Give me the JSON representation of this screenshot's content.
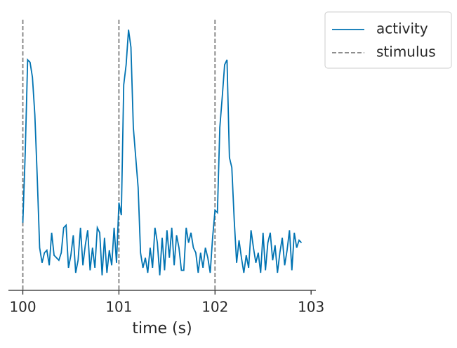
{
  "chart_data": {
    "type": "line",
    "xlabel": "time (s)",
    "x": [
      100.0,
      100.025,
      100.05,
      100.075,
      100.1,
      100.125,
      100.15,
      100.175,
      100.2,
      100.225,
      100.25,
      100.275,
      100.3,
      100.325,
      100.35,
      100.375,
      100.4,
      100.425,
      100.45,
      100.475,
      100.5,
      100.525,
      100.55,
      100.575,
      100.6,
      100.625,
      100.65,
      100.675,
      100.7,
      100.725,
      100.75,
      100.775,
      100.8,
      100.825,
      100.85,
      100.875,
      100.9,
      100.925,
      100.95,
      100.975,
      101.0,
      101.025,
      101.05,
      101.075,
      101.1,
      101.125,
      101.15,
      101.175,
      101.2,
      101.225,
      101.25,
      101.275,
      101.3,
      101.325,
      101.35,
      101.375,
      101.4,
      101.425,
      101.45,
      101.475,
      101.5,
      101.525,
      101.55,
      101.575,
      101.6,
      101.625,
      101.65,
      101.675,
      101.7,
      101.725,
      101.75,
      101.775,
      101.8,
      101.825,
      101.85,
      101.875,
      101.9,
      101.925,
      101.95,
      101.975,
      102.0,
      102.025,
      102.05,
      102.075,
      102.1,
      102.125,
      102.15,
      102.175,
      102.2,
      102.225,
      102.25,
      102.275,
      102.3,
      102.325,
      102.35,
      102.375,
      102.4,
      102.425,
      102.45,
      102.475,
      102.5,
      102.525,
      102.55,
      102.575,
      102.6,
      102.625,
      102.65,
      102.675,
      102.7,
      102.725,
      102.75,
      102.775,
      102.8,
      102.825,
      102.85,
      102.875,
      102.9
    ],
    "series": [
      {
        "name": "activity",
        "color": "#0173b2",
        "values": [
          0.22,
          0.5,
          0.87,
          0.86,
          0.8,
          0.65,
          0.4,
          0.12,
          0.06,
          0.1,
          0.11,
          0.05,
          0.18,
          0.09,
          0.08,
          0.07,
          0.1,
          0.2,
          0.21,
          0.04,
          0.09,
          0.17,
          0.02,
          0.07,
          0.2,
          0.05,
          0.13,
          0.19,
          0.03,
          0.12,
          0.04,
          0.2,
          0.18,
          0.01,
          0.16,
          0.02,
          0.11,
          0.05,
          0.2,
          0.06,
          0.3,
          0.25,
          0.77,
          0.85,
          0.99,
          0.92,
          0.6,
          0.48,
          0.36,
          0.1,
          0.04,
          0.08,
          0.02,
          0.12,
          0.04,
          0.2,
          0.14,
          0.01,
          0.16,
          0.03,
          0.19,
          0.08,
          0.2,
          0.05,
          0.17,
          0.12,
          0.03,
          0.03,
          0.2,
          0.14,
          0.18,
          0.12,
          0.1,
          0.02,
          0.1,
          0.04,
          0.12,
          0.08,
          0.02,
          0.16,
          0.27,
          0.26,
          0.6,
          0.72,
          0.85,
          0.87,
          0.48,
          0.44,
          0.23,
          0.06,
          0.15,
          0.08,
          0.02,
          0.09,
          0.04,
          0.19,
          0.12,
          0.06,
          0.1,
          0.02,
          0.18,
          0.03,
          0.14,
          0.18,
          0.07,
          0.13,
          0.02,
          0.1,
          0.16,
          0.05,
          0.11,
          0.19,
          0.03,
          0.18,
          0.12,
          0.15,
          0.14
        ]
      }
    ],
    "vlines": {
      "name": "stimulus",
      "color": "#7f7f7f",
      "x": [
        100,
        101,
        102
      ]
    },
    "xlim": [
      99.85,
      103.05
    ],
    "ylim": [
      -0.05,
      1.03
    ],
    "xticks": [
      100,
      101,
      102,
      103
    ],
    "legend": "outside upper right"
  }
}
